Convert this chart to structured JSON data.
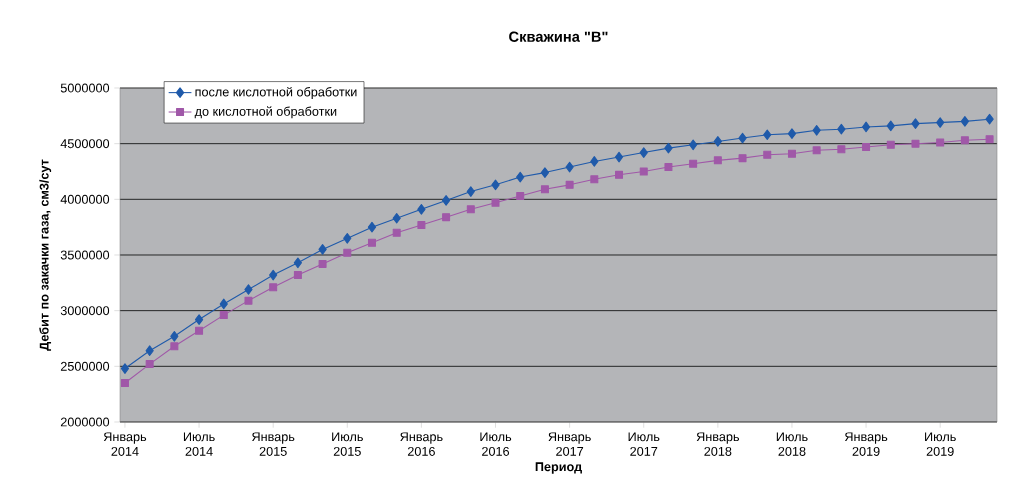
{
  "chart_data": {
    "type": "line",
    "title": "Скважина \"В\"",
    "xlabel": "Период",
    "ylabel": "Дебит по закачки газа, см3/сут",
    "categories": [
      "Январь 2014",
      null,
      null,
      "Июль 2014",
      null,
      null,
      "Январь 2015",
      null,
      null,
      "Июль 2015",
      null,
      null,
      "Январь 2016",
      null,
      null,
      "Июль 2016",
      null,
      null,
      "Январь 2017",
      null,
      null,
      "Июль 2017",
      null,
      null,
      "Январь 2018",
      null,
      null,
      "Июль 2018",
      null,
      null,
      "Январь 2019",
      null,
      null,
      "Июль 2019",
      null,
      null
    ],
    "series": [
      {
        "name": "после кислотной обработки",
        "color": "#1f5aaa",
        "marker": "diamond",
        "values": [
          2480000,
          2640000,
          2770000,
          2920000,
          3060000,
          3190000,
          3320000,
          3430000,
          3550000,
          3650000,
          3750000,
          3830000,
          3910000,
          3990000,
          4070000,
          4130000,
          4200000,
          4240000,
          4290000,
          4340000,
          4380000,
          4420000,
          4460000,
          4490000,
          4520000,
          4550000,
          4580000,
          4590000,
          4620000,
          4630000,
          4650000,
          4660000,
          4680000,
          4690000,
          4700000,
          4720000
        ]
      },
      {
        "name": "до кислотной обработки",
        "color": "#a058a8",
        "marker": "square",
        "values": [
          2350000,
          2520000,
          2680000,
          2820000,
          2960000,
          3090000,
          3210000,
          3320000,
          3420000,
          3520000,
          3610000,
          3700000,
          3770000,
          3840000,
          3910000,
          3970000,
          4030000,
          4090000,
          4130000,
          4180000,
          4220000,
          4250000,
          4290000,
          4320000,
          4350000,
          4370000,
          4400000,
          4410000,
          4440000,
          4450000,
          4470000,
          4490000,
          4500000,
          4510000,
          4530000,
          4540000
        ]
      }
    ],
    "ylim": [
      2000000,
      5000000
    ],
    "yticks": [
      2000000,
      2500000,
      3000000,
      3500000,
      4000000,
      4500000,
      5000000
    ],
    "grid": "y",
    "legend": "top left",
    "line_style": "solid"
  }
}
